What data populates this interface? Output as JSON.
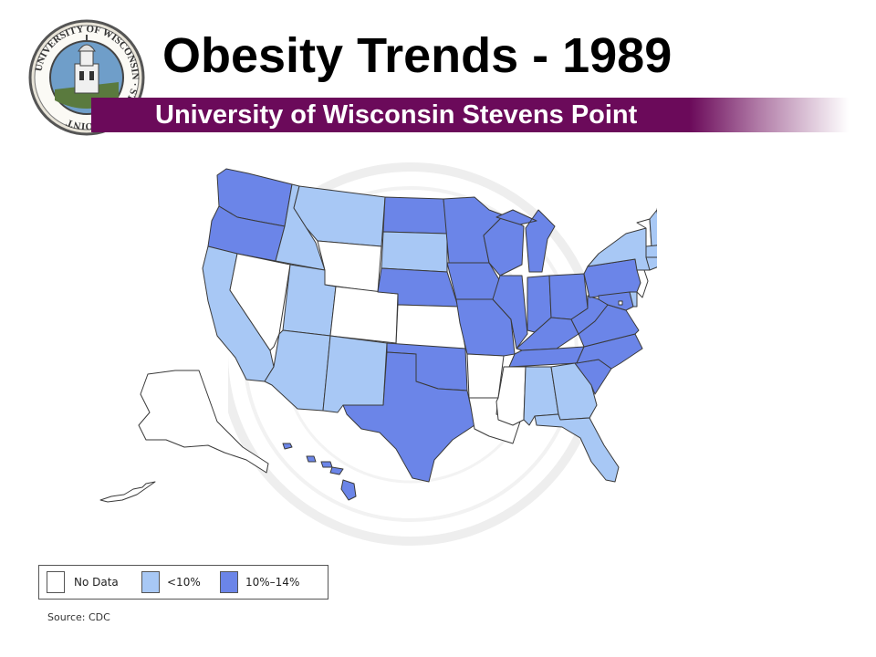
{
  "header": {
    "title": "Obesity Trends - 1989",
    "subtitle": "University of Wisconsin Stevens Point",
    "seal_text": "UNIVERSITY OF WISCONSIN · STEVENS POINT"
  },
  "colors": {
    "band": "#6b0a5a",
    "no_data": "#ffffff",
    "lt10": "#a8c8f5",
    "p10_14": "#6b85e8",
    "state_border": "#3a3a3a"
  },
  "legend": {
    "items": [
      {
        "label": "No Data",
        "class": "no_data"
      },
      {
        "label": "<10%",
        "class": "lt10"
      },
      {
        "label": "10%–14%",
        "class": "p10_14"
      }
    ]
  },
  "source": "Source: CDC",
  "states": {
    "WA": "p10_14",
    "OR": "p10_14",
    "CA": "lt10",
    "NV": "no_data",
    "ID": "lt10",
    "MT": "lt10",
    "WY": "no_data",
    "UT": "lt10",
    "AZ": "lt10",
    "CO": "no_data",
    "NM": "lt10",
    "ND": "p10_14",
    "SD": "lt10",
    "NE": "p10_14",
    "KS": "no_data",
    "OK": "p10_14",
    "TX": "p10_14",
    "MN": "p10_14",
    "IA": "p10_14",
    "MO": "p10_14",
    "AR": "no_data",
    "LA": "no_data",
    "WI": "p10_14",
    "IL": "p10_14",
    "MI": "p10_14",
    "IN": "p10_14",
    "OH": "p10_14",
    "KY": "p10_14",
    "TN": "p10_14",
    "MS": "no_data",
    "AL": "lt10",
    "GA": "lt10",
    "FL": "lt10",
    "SC": "p10_14",
    "NC": "p10_14",
    "VA": "p10_14",
    "WV": "p10_14",
    "PA": "p10_14",
    "NY": "lt10",
    "VT": "no_data",
    "NH": "lt10",
    "ME": "lt10",
    "MA": "lt10",
    "CT": "lt10",
    "RI": "lt10",
    "NJ": "no_data",
    "DE": "lt10",
    "MD": "p10_14",
    "DC": "no_data",
    "AK": "no_data",
    "HI": "p10_14"
  }
}
